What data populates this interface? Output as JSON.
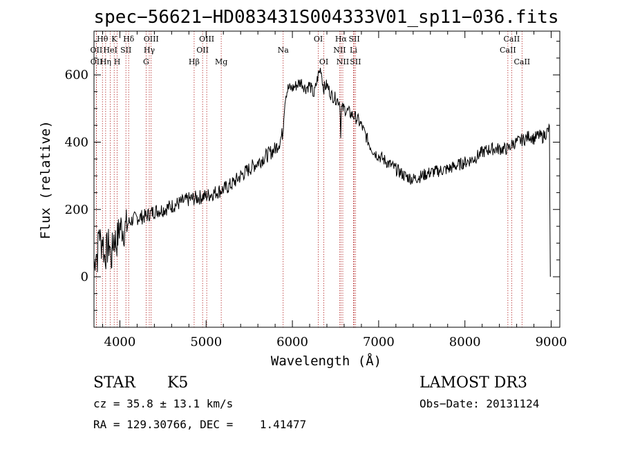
{
  "chart_data": {
    "type": "line",
    "title": "spec−56621−HD083431S004333V01_sp11−036.fits",
    "xlabel": "Wavelength (Å)",
    "ylabel": "Flux (relative)",
    "xlim": [
      3700,
      9100
    ],
    "ylim": [
      -150,
      730
    ],
    "x_ticks": [
      4000,
      5000,
      6000,
      7000,
      8000,
      9000
    ],
    "y_ticks": [
      0,
      200,
      400,
      600
    ],
    "x_minor_step": 200,
    "y_minor_step": 50,
    "grid": false,
    "series": [
      {
        "name": "flux",
        "x": [
          3700,
          3720,
          3740,
          3760,
          3780,
          3800,
          3820,
          3850,
          3880,
          3900,
          3930,
          3960,
          4000,
          4050,
          4100,
          4150,
          4200,
          4300,
          4400,
          4500,
          4600,
          4700,
          4800,
          4900,
          5000,
          5100,
          5200,
          5300,
          5400,
          5500,
          5600,
          5700,
          5800,
          5850,
          5890,
          5900,
          5920,
          5950,
          6000,
          6050,
          6100,
          6150,
          6200,
          6250,
          6300,
          6330,
          6360,
          6400,
          6450,
          6500,
          6550,
          6560,
          6570,
          6600,
          6650,
          6700,
          6750,
          6800,
          6850,
          6900,
          6950,
          7000,
          7050,
          7100,
          7200,
          7300,
          7400,
          7500,
          7600,
          7700,
          7800,
          7900,
          8000,
          8100,
          8200,
          8300,
          8400,
          8500,
          8550,
          8600,
          8650,
          8700,
          8750,
          8800,
          8850,
          8900,
          8950,
          8980,
          8990
        ],
        "y": [
          20,
          80,
          60,
          150,
          90,
          120,
          60,
          80,
          100,
          50,
          120,
          100,
          150,
          140,
          160,
          170,
          175,
          180,
          195,
          200,
          210,
          220,
          230,
          235,
          240,
          250,
          260,
          275,
          300,
          320,
          340,
          360,
          380,
          400,
          430,
          480,
          540,
          560,
          560,
          570,
          580,
          560,
          570,
          540,
          600,
          620,
          560,
          570,
          540,
          530,
          520,
          430,
          500,
          500,
          490,
          480,
          470,
          450,
          420,
          390,
          370,
          360,
          350,
          340,
          320,
          300,
          290,
          300,
          310,
          315,
          320,
          330,
          340,
          350,
          370,
          380,
          380,
          380,
          395,
          400,
          405,
          410,
          420,
          410,
          420,
          415,
          430,
          440,
          0
        ]
      }
    ],
    "spectral_lines": [
      {
        "label": "Hθ",
        "wavelength": 3798,
        "row": 1
      },
      {
        "label": "OII",
        "wavelength": 3727,
        "row": 2
      },
      {
        "label": "OII",
        "wavelength": 3729,
        "row": 3
      },
      {
        "label": "K",
        "wavelength": 3934,
        "row": 1
      },
      {
        "label": "HeI",
        "wavelength": 3889,
        "row": 2
      },
      {
        "label": "Hη",
        "wavelength": 3835,
        "row": 3
      },
      {
        "label": "Hδ",
        "wavelength": 4102,
        "row": 1
      },
      {
        "label": "SII",
        "wavelength": 4070,
        "row": 2
      },
      {
        "label": "H",
        "wavelength": 3969,
        "row": 3
      },
      {
        "label": "OIII",
        "wavelength": 4363,
        "row": 1
      },
      {
        "label": "Hγ",
        "wavelength": 4341,
        "row": 2
      },
      {
        "label": "G",
        "wavelength": 4304,
        "row": 3
      },
      {
        "label": "OIII",
        "wavelength": 5007,
        "row": 1
      },
      {
        "label": "OII",
        "wavelength": 4959,
        "row": 2
      },
      {
        "label": "Hβ",
        "wavelength": 4861,
        "row": 3
      },
      {
        "label": "Mg",
        "wavelength": 5175,
        "row": 3
      },
      {
        "label": "Na",
        "wavelength": 5893,
        "row": 2
      },
      {
        "label": "OI",
        "wavelength": 6300,
        "row": 1
      },
      {
        "label": "OI",
        "wavelength": 6364,
        "row": 3
      },
      {
        "label": "Hα",
        "wavelength": 6563,
        "row": 1
      },
      {
        "label": "SII",
        "wavelength": 6717,
        "row": 1
      },
      {
        "label": "NII",
        "wavelength": 6548,
        "row": 2
      },
      {
        "label": "Li",
        "wavelength": 6708,
        "row": 2
      },
      {
        "label": "NII",
        "wavelength": 6584,
        "row": 3
      },
      {
        "label": "SII",
        "wavelength": 6731,
        "row": 3
      },
      {
        "label": "CaII",
        "wavelength": 8542,
        "row": 1
      },
      {
        "label": "CaII",
        "wavelength": 8498,
        "row": 2
      },
      {
        "label": "CaII",
        "wavelength": 8662,
        "row": 3
      }
    ]
  },
  "info": {
    "class_label": "STAR",
    "subclass": "K5",
    "survey": "LAMOST DR3",
    "redshift_text": "cz = 35.8 ± 13.1 km/s",
    "obs_date_text": "Obs−Date: 20131124",
    "coords_text": "RA = 129.30766, DEC =    1.41477"
  }
}
